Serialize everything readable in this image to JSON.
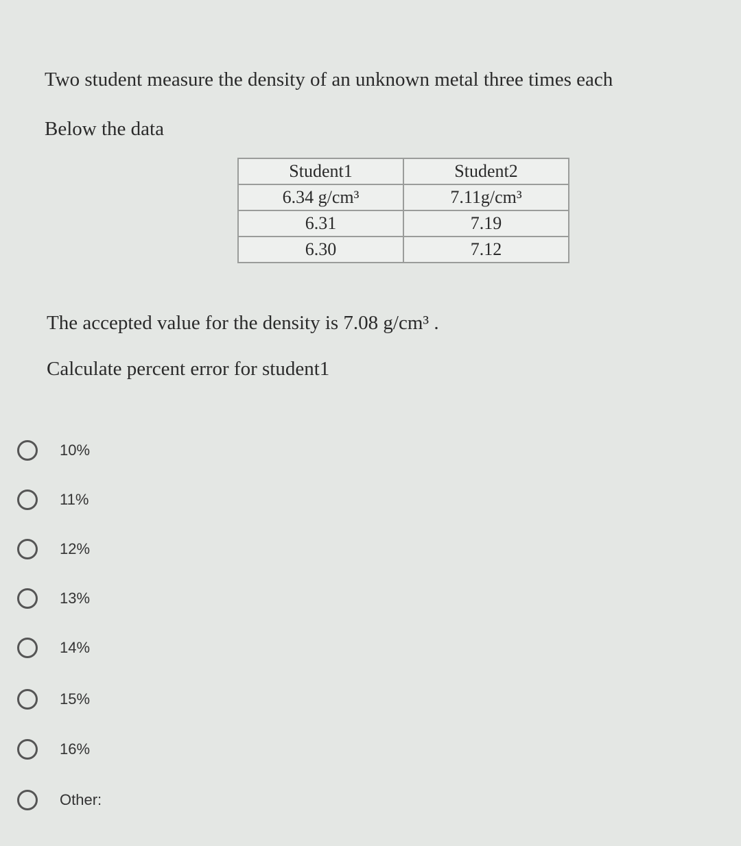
{
  "question": {
    "line1": "Two student measure the density of an unknown metal three times each",
    "line2": "Below the data"
  },
  "table": {
    "header": [
      "Student1",
      "Student2"
    ],
    "rows": [
      [
        "6.34 g/cm³",
        "7.11g/cm³"
      ],
      [
        "6.31",
        "7.19"
      ],
      [
        "6.30",
        "7.12"
      ]
    ]
  },
  "accepted": "The accepted value for the density is 7.08 g/cm³ .",
  "prompt": "Calculate  percent error for student1",
  "options": [
    "10%",
    "11%",
    "12%",
    "13%",
    "14%",
    "15%",
    "16%",
    "Other:"
  ]
}
